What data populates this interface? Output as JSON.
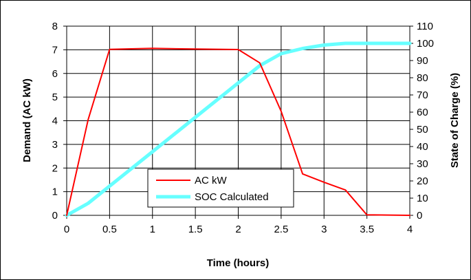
{
  "chart_data": {
    "type": "line",
    "title": "",
    "xlabel": "Time (hours)",
    "ylabel": "Demand (AC kW)",
    "y2label": "State of Charge (%)",
    "xlim": [
      0,
      4
    ],
    "ylim": [
      0,
      8
    ],
    "y2lim": [
      0,
      110
    ],
    "x_ticks": [
      "0",
      "0.5",
      "1",
      "1.5",
      "2",
      "2.5",
      "3",
      "3.5",
      "4"
    ],
    "y_ticks": [
      "0",
      "1",
      "2",
      "3",
      "4",
      "5",
      "6",
      "7",
      "8"
    ],
    "y2_ticks": [
      "0",
      "10",
      "20",
      "30",
      "40",
      "50",
      "60",
      "70",
      "80",
      "90",
      "100",
      "110"
    ],
    "grid": true,
    "legend_position": "bottom-center",
    "series": [
      {
        "name": "AC kW",
        "axis": "left",
        "color": "#ff0000",
        "x": [
          0,
          0.25,
          0.5,
          1,
          1.5,
          2,
          2.25,
          2.5,
          2.75,
          3,
          3.25,
          3.5,
          4
        ],
        "y": [
          0,
          4.05,
          7.02,
          7.06,
          7.03,
          7.01,
          6.45,
          4.4,
          1.75,
          1.4,
          1.07,
          0.02,
          0.0
        ]
      },
      {
        "name": "SOC Calculated",
        "axis": "right",
        "color": "#66ffff",
        "x": [
          0,
          0.25,
          0.5,
          1,
          1.5,
          2,
          2.25,
          2.5,
          2.75,
          3,
          3.25,
          3.5,
          4
        ],
        "y": [
          0,
          7,
          17,
          37,
          57,
          77,
          87,
          94,
          97,
          99,
          100,
          100,
          100
        ]
      }
    ]
  }
}
